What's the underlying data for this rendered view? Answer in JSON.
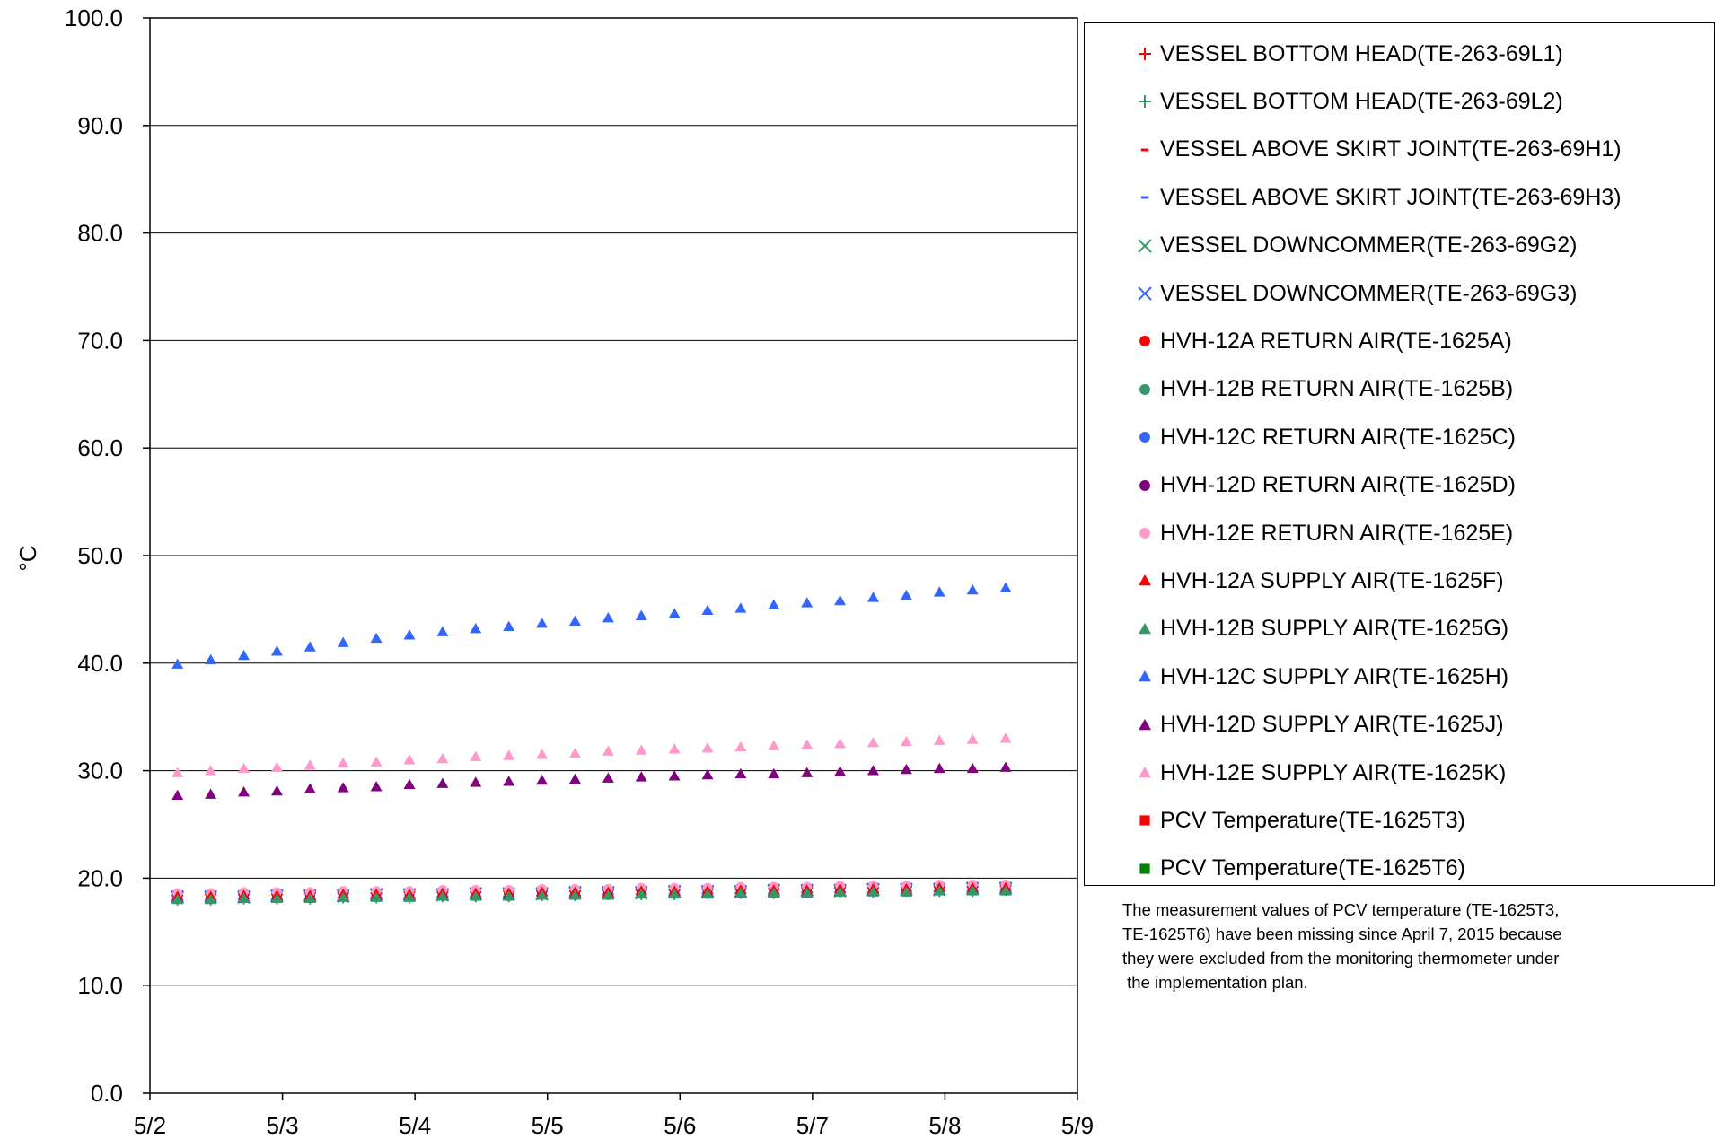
{
  "chart_data": {
    "type": "scatter",
    "title": "",
    "xlabel": "",
    "ylabel": "°C",
    "ylim": [
      0,
      100
    ],
    "yticks": [
      "0.0",
      "10.0",
      "20.0",
      "30.0",
      "40.0",
      "50.0",
      "60.0",
      "70.0",
      "80.0",
      "90.0",
      "100.0"
    ],
    "xlim": [
      "5/2",
      "5/9"
    ],
    "xticks": [
      "5/2",
      "5/3",
      "5/4",
      "5/5",
      "5/6",
      "5/7",
      "5/8",
      "5/9"
    ],
    "grid": true,
    "legend_position": "right",
    "x": [
      "5/2 05:00",
      "5/2 11:00",
      "5/2 17:00",
      "5/2 23:00",
      "5/3 05:00",
      "5/3 11:00",
      "5/3 17:00",
      "5/3 23:00",
      "5/4 05:00",
      "5/4 11:00",
      "5/4 17:00",
      "5/4 23:00",
      "5/5 05:00",
      "5/5 11:00",
      "5/5 17:00",
      "5/5 23:00",
      "5/6 05:00",
      "5/6 11:00",
      "5/6 17:00",
      "5/6 23:00",
      "5/7 05:00",
      "5/7 11:00",
      "5/7 17:00",
      "5/7 23:00",
      "5/8 05:00",
      "5/8 11:00"
    ],
    "series": [
      {
        "name": "VESSEL BOTTOM HEAD(TE-263-69L1)",
        "marker": "plus",
        "color": "#ff0000",
        "values": [
          18.4,
          18.5,
          18.5,
          18.5,
          18.6,
          18.6,
          18.6,
          18.7,
          18.7,
          18.7,
          18.8,
          18.8,
          18.8,
          18.9,
          18.9,
          18.9,
          19.0,
          19.0,
          19.0,
          19.1,
          19.1,
          19.1,
          19.2,
          19.2,
          19.2,
          19.3
        ]
      },
      {
        "name": "VESSEL BOTTOM HEAD(TE-263-69L2)",
        "marker": "plus",
        "color": "#339966",
        "values": [
          18.0,
          18.0,
          18.1,
          18.1,
          18.1,
          18.2,
          18.2,
          18.2,
          18.3,
          18.3,
          18.3,
          18.4,
          18.4,
          18.5,
          18.5,
          18.5,
          18.6,
          18.6,
          18.6,
          18.7,
          18.7,
          18.7,
          18.8,
          18.8,
          18.8,
          18.9
        ]
      },
      {
        "name": "VESSEL ABOVE SKIRT JOINT(TE-263-69H1)",
        "marker": "dash",
        "color": "#ff0000",
        "values": [
          18.6,
          18.6,
          18.7,
          18.7,
          18.7,
          18.8,
          18.8,
          18.8,
          18.9,
          18.9,
          18.9,
          19.0,
          19.0,
          19.0,
          19.1,
          19.1,
          19.1,
          19.2,
          19.2,
          19.2,
          19.3,
          19.3,
          19.3,
          19.4,
          19.4,
          19.4
        ]
      },
      {
        "name": "VESSEL ABOVE SKIRT JOINT(TE-263-69H3)",
        "marker": "dash",
        "color": "#3366ff",
        "values": [
          18.3,
          18.3,
          18.4,
          18.4,
          18.4,
          18.5,
          18.5,
          18.5,
          18.6,
          18.6,
          18.6,
          18.7,
          18.7,
          18.7,
          18.8,
          18.8,
          18.8,
          18.9,
          18.9,
          18.9,
          19.0,
          19.0,
          19.0,
          19.1,
          19.1,
          19.1
        ]
      },
      {
        "name": "VESSEL DOWNCOMMER(TE-263-69G2)",
        "marker": "cross",
        "color": "#339966",
        "values": [
          18.2,
          18.2,
          18.2,
          18.3,
          18.3,
          18.3,
          18.4,
          18.4,
          18.4,
          18.5,
          18.5,
          18.5,
          18.6,
          18.6,
          18.6,
          18.7,
          18.7,
          18.7,
          18.8,
          18.8,
          18.8,
          18.9,
          18.9,
          18.9,
          19.0,
          19.0
        ]
      },
      {
        "name": "VESSEL DOWNCOMMER(TE-263-69G3)",
        "marker": "cross",
        "color": "#3366ff",
        "values": [
          18.3,
          18.3,
          18.3,
          18.4,
          18.4,
          18.4,
          18.5,
          18.5,
          18.5,
          18.6,
          18.6,
          18.6,
          18.7,
          18.7,
          18.7,
          18.8,
          18.8,
          18.8,
          18.9,
          18.9,
          18.9,
          19.0,
          19.0,
          19.0,
          19.1,
          19.1
        ]
      },
      {
        "name": "HVH-12A RETURN AIR(TE-1625A)",
        "marker": "circle",
        "color": "#ff0000",
        "values": [
          18.5,
          18.5,
          18.6,
          18.6,
          18.6,
          18.7,
          18.7,
          18.7,
          18.8,
          18.8,
          18.8,
          18.9,
          18.9,
          18.9,
          19.0,
          19.0,
          19.0,
          19.1,
          19.1,
          19.1,
          19.2,
          19.2,
          19.2,
          19.3,
          19.3,
          19.3
        ]
      },
      {
        "name": "HVH-12B RETURN AIR(TE-1625B)",
        "marker": "circle",
        "color": "#339966",
        "values": [
          18.1,
          18.1,
          18.2,
          18.2,
          18.2,
          18.3,
          18.3,
          18.3,
          18.4,
          18.4,
          18.4,
          18.5,
          18.5,
          18.5,
          18.6,
          18.6,
          18.6,
          18.7,
          18.7,
          18.7,
          18.8,
          18.8,
          18.8,
          18.9,
          18.9,
          18.9
        ]
      },
      {
        "name": "HVH-12C RETURN AIR(TE-1625C)",
        "marker": "circle",
        "color": "#3366ff",
        "values": [
          18.2,
          18.2,
          18.3,
          18.3,
          18.3,
          18.4,
          18.4,
          18.4,
          18.5,
          18.5,
          18.5,
          18.6,
          18.6,
          18.6,
          18.7,
          18.7,
          18.7,
          18.8,
          18.8,
          18.8,
          18.9,
          18.9,
          18.9,
          19.0,
          19.0,
          19.0
        ]
      },
      {
        "name": "HVH-12D RETURN AIR(TE-1625D)",
        "marker": "circle",
        "color": "#800080",
        "values": [
          18.4,
          18.4,
          18.5,
          18.5,
          18.5,
          18.6,
          18.6,
          18.6,
          18.7,
          18.7,
          18.7,
          18.8,
          18.8,
          18.8,
          18.9,
          18.9,
          18.9,
          19.0,
          19.0,
          19.0,
          19.1,
          19.1,
          19.1,
          19.2,
          19.2,
          19.2
        ]
      },
      {
        "name": "HVH-12E RETURN AIR(TE-1625E)",
        "marker": "circle",
        "color": "#ff99cc",
        "values": [
          18.6,
          18.6,
          18.7,
          18.7,
          18.7,
          18.8,
          18.8,
          18.8,
          18.9,
          18.9,
          18.9,
          19.0,
          19.0,
          19.0,
          19.1,
          19.1,
          19.1,
          19.2,
          19.2,
          19.2,
          19.3,
          19.3,
          19.3,
          19.4,
          19.4,
          19.4
        ]
      },
      {
        "name": "HVH-12A SUPPLY AIR(TE-1625F)",
        "marker": "triangle",
        "color": "#ff0000",
        "values": [
          18.3,
          18.3,
          18.4,
          18.4,
          18.4,
          18.5,
          18.5,
          18.5,
          18.6,
          18.6,
          18.6,
          18.7,
          18.7,
          18.7,
          18.8,
          18.8,
          18.8,
          18.9,
          18.9,
          18.9,
          19.0,
          19.0,
          19.0,
          19.1,
          19.1,
          19.1
        ]
      },
      {
        "name": "HVH-12B SUPPLY AIR(TE-1625G)",
        "marker": "triangle",
        "color": "#339966",
        "values": [
          18.0,
          18.0,
          18.1,
          18.1,
          18.1,
          18.2,
          18.2,
          18.2,
          18.3,
          18.3,
          18.3,
          18.4,
          18.4,
          18.4,
          18.5,
          18.5,
          18.5,
          18.6,
          18.6,
          18.6,
          18.7,
          18.7,
          18.7,
          18.8,
          18.8,
          18.8
        ]
      },
      {
        "name": "HVH-12C SUPPLY AIR(TE-1625H)",
        "marker": "triangle",
        "color": "#3366ff",
        "values": [
          39.9,
          40.3,
          40.7,
          41.1,
          41.5,
          41.9,
          42.3,
          42.6,
          42.9,
          43.2,
          43.4,
          43.7,
          43.9,
          44.2,
          44.4,
          44.6,
          44.9,
          45.1,
          45.4,
          45.6,
          45.8,
          46.1,
          46.3,
          46.6,
          46.8,
          47.0
        ]
      },
      {
        "name": "HVH-12D SUPPLY AIR(TE-1625J)",
        "marker": "triangle",
        "color": "#800080",
        "values": [
          27.7,
          27.8,
          28.0,
          28.1,
          28.3,
          28.4,
          28.5,
          28.7,
          28.8,
          28.9,
          29.0,
          29.1,
          29.2,
          29.3,
          29.4,
          29.5,
          29.6,
          29.7,
          29.7,
          29.8,
          29.9,
          30.0,
          30.1,
          30.2,
          30.2,
          30.3
        ]
      },
      {
        "name": "HVH-12E SUPPLY AIR(TE-1625K)",
        "marker": "triangle",
        "color": "#ff99cc",
        "values": [
          29.8,
          30.0,
          30.2,
          30.3,
          30.5,
          30.7,
          30.8,
          31.0,
          31.1,
          31.3,
          31.4,
          31.5,
          31.6,
          31.8,
          31.9,
          32.0,
          32.1,
          32.2,
          32.3,
          32.4,
          32.5,
          32.6,
          32.7,
          32.8,
          32.9,
          33.0
        ]
      },
      {
        "name": "PCV Temperature(TE-1625T3)",
        "marker": "square",
        "color": "#ff0000",
        "values": []
      },
      {
        "name": "PCV Temperature(TE-1625T6)",
        "marker": "square",
        "color": "#008000",
        "values": []
      }
    ],
    "annotation": [
      "The measurement values of PCV temperature (TE-1625T3,",
      "TE-1625T6) have been missing since April 7, 2015 because",
      "they were excluded from the monitoring thermometer under",
      " the implementation plan."
    ]
  }
}
